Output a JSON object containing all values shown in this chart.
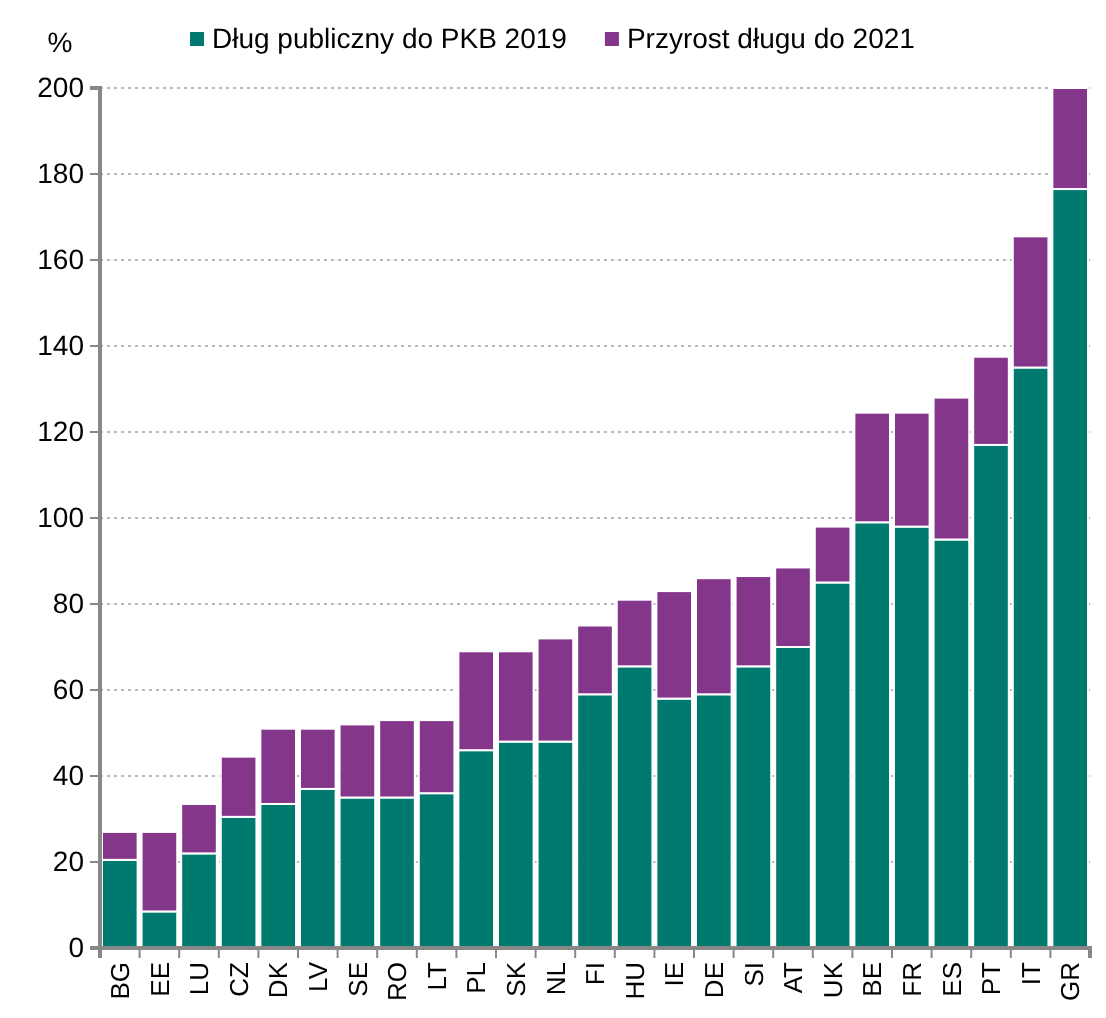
{
  "chart_data": {
    "type": "bar",
    "stacked": true,
    "ylabel": "%",
    "categories": [
      "BG",
      "EE",
      "LU",
      "CZ",
      "DK",
      "LV",
      "SE",
      "RO",
      "LT",
      "PL",
      "SK",
      "NL",
      "FI",
      "HU",
      "IE",
      "DE",
      "SI",
      "AT",
      "UK",
      "BE",
      "FR",
      "ES",
      "PT",
      "IT",
      "GR"
    ],
    "series": [
      {
        "name": "Dług publiczny do PKB 2019",
        "color": "#007a6e",
        "values": [
          20.5,
          8.5,
          22,
          30.5,
          33.5,
          37,
          35,
          35,
          36,
          46,
          48,
          48,
          59,
          65.5,
          58,
          59,
          65.5,
          70,
          85,
          99,
          98,
          95,
          117,
          135,
          176.5
        ]
      },
      {
        "name": "Przyrost długu do 2021",
        "color": "#84368a",
        "values": [
          6.5,
          18.5,
          11.5,
          14,
          17.5,
          14,
          17,
          18,
          17,
          23,
          21,
          24,
          16,
          15.5,
          25,
          27,
          21,
          18.5,
          13,
          25.5,
          26.5,
          33,
          20.5,
          30.5,
          23.5
        ]
      }
    ],
    "ylim": [
      0,
      200
    ],
    "yticks": [
      0,
      20,
      40,
      60,
      80,
      100,
      120,
      140,
      160,
      180,
      200
    ],
    "grid": "y",
    "legend": "top"
  }
}
